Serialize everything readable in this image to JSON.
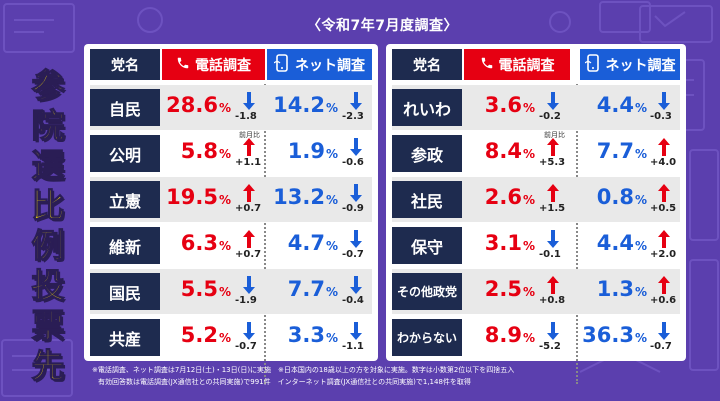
{
  "subtitle": "〈令和7年7月度調査〉",
  "side_title_chars": [
    "参",
    "院",
    "選",
    "比",
    "例",
    "投",
    "票",
    "先"
  ],
  "headers": {
    "party": "党名",
    "phone": "電話調査",
    "net": "ネット調査"
  },
  "prev_month_label": "前月比",
  "left_table": [
    {
      "party": "自民",
      "phone_value": "28.6",
      "phone_change": "-1.8",
      "phone_dir": "down",
      "net_value": "14.2",
      "net_change": "-2.3",
      "net_dir": "down"
    },
    {
      "party": "公明",
      "phone_value": "5.8",
      "phone_change": "+1.1",
      "phone_dir": "up",
      "net_value": "1.9",
      "net_change": "-0.6",
      "net_dir": "down"
    },
    {
      "party": "立憲",
      "phone_value": "19.5",
      "phone_change": "+0.7",
      "phone_dir": "up",
      "net_value": "13.2",
      "net_change": "-0.9",
      "net_dir": "down"
    },
    {
      "party": "維新",
      "phone_value": "6.3",
      "phone_change": "+0.7",
      "phone_dir": "up",
      "net_value": "4.7",
      "net_change": "-0.7",
      "net_dir": "down"
    },
    {
      "party": "国民",
      "phone_value": "5.5",
      "phone_change": "-1.9",
      "phone_dir": "down",
      "net_value": "7.7",
      "net_change": "-0.4",
      "net_dir": "down"
    },
    {
      "party": "共産",
      "phone_value": "5.2",
      "phone_change": "-0.7",
      "phone_dir": "down",
      "net_value": "3.3",
      "net_change": "-1.1",
      "net_dir": "down"
    }
  ],
  "right_table": [
    {
      "party": "れいわ",
      "phone_value": "3.6",
      "phone_change": "-0.2",
      "phone_dir": "down",
      "net_value": "4.4",
      "net_change": "-0.3",
      "net_dir": "down"
    },
    {
      "party": "参政",
      "phone_value": "8.4",
      "phone_change": "+5.3",
      "phone_dir": "up",
      "net_value": "7.7",
      "net_change": "+4.0",
      "net_dir": "up"
    },
    {
      "party": "社民",
      "phone_value": "2.6",
      "phone_change": "+1.5",
      "phone_dir": "up",
      "net_value": "0.8",
      "net_change": "+0.5",
      "net_dir": "up"
    },
    {
      "party": "保守",
      "phone_value": "3.1",
      "phone_change": "-0.1",
      "phone_dir": "down",
      "net_value": "4.4",
      "net_change": "+2.0",
      "net_dir": "up"
    },
    {
      "party": "その他政党",
      "phone_value": "2.5",
      "phone_change": "+0.8",
      "phone_dir": "up",
      "net_value": "1.3",
      "net_change": "+0.6",
      "net_dir": "up"
    },
    {
      "party": "わからない",
      "phone_value": "8.9",
      "phone_change": "-5.2",
      "phone_dir": "down",
      "net_value": "36.3",
      "net_change": "-0.7",
      "net_dir": "down"
    }
  ],
  "footnote_line1": "※電話調査、ネット調査は7月12日(土)・13日(日)に実施　※日本国内の18歳以上の方を対象に実施。数字は小数第2位以下を四捨五入",
  "footnote_line2": "有効回答数は電話調査(JX通信社との共同実施)で991件　インターネット調査(JX通信社との共同実施)で1,148件を取得",
  "colors": {
    "background": "#5b3fae",
    "phone_red": "#e60012",
    "net_blue": "#1a5ed8",
    "party_navy": "#1e2b4f",
    "title_yellow": "#ffe600"
  },
  "icons": {
    "phone": "phone-icon",
    "net": "smartphone-icon",
    "up": "up-arrow-icon",
    "down": "down-arrow-icon"
  }
}
